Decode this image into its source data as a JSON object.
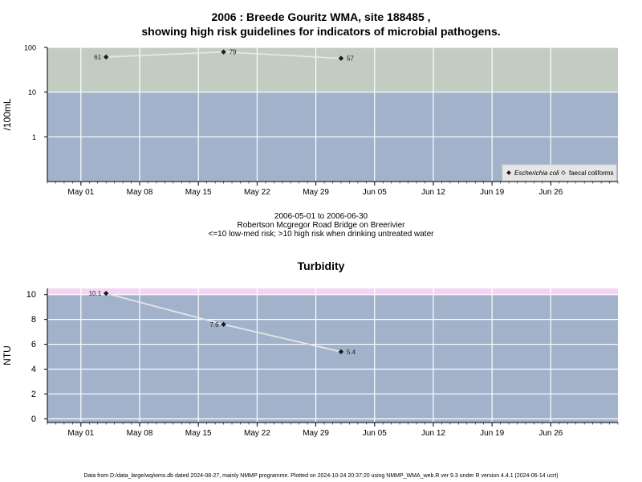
{
  "page": {
    "title_line1": "2006 : Breede Gouritz WMA, site 188485 ,",
    "title_line2": "showing high risk guidelines for indicators of microbial pathogens.",
    "caption_line1": "2006-05-01 to 2006-06-30",
    "caption_line2": "Robertson Mcgregor Road Bridge on Breerivier",
    "caption_line3": "<=10 low-med risk; >10 high risk when drinking untreated water",
    "footer": "Data from D:/data_large/wq/wms.db dated 2024-08-27, mainly NMMP programme. Plotted on 2024-10-24 20:37:20 using NMMP_WMA_web.R ver 9.3 under R version 4.4.1 (2024-06-14 ucrt)"
  },
  "chart_data": [
    {
      "type": "line",
      "title": "",
      "ylabel": "/100mL",
      "y_scale": "log",
      "ylim": [
        0.1,
        100
      ],
      "y_ticks": [
        {
          "value": 1,
          "label": "1"
        },
        {
          "value": 10,
          "label": "10"
        },
        {
          "value": 100,
          "label": "100"
        }
      ],
      "xlim": [
        "2006-04-27",
        "2006-07-04"
      ],
      "x_ticks": [
        {
          "date": "2006-05-01",
          "label": "May 01"
        },
        {
          "date": "2006-05-08",
          "label": "May 08"
        },
        {
          "date": "2006-05-15",
          "label": "May 15"
        },
        {
          "date": "2006-05-22",
          "label": "May 22"
        },
        {
          "date": "2006-05-29",
          "label": "May 29"
        },
        {
          "date": "2006-06-05",
          "label": "Jun 05"
        },
        {
          "date": "2006-06-12",
          "label": "Jun 12"
        },
        {
          "date": "2006-06-19",
          "label": "Jun 19"
        },
        {
          "date": "2006-06-26",
          "label": "Jun 26"
        }
      ],
      "bands": [
        {
          "from": 0.1,
          "to": 10,
          "color": "#a2b2cb"
        },
        {
          "from": 10,
          "to": 100,
          "color": "#c2ccc1"
        }
      ],
      "line_color": "#e6e6e6",
      "series": [
        {
          "name": "Escherichia coli",
          "marker": "filled-diamond",
          "points": [
            {
              "x": "2006-05-04",
              "y": 61,
              "label": "61"
            },
            {
              "x": "2006-05-18",
              "y": 79,
              "label": "79"
            },
            {
              "x": "2006-06-01",
              "y": 57,
              "label": "57"
            }
          ]
        }
      ],
      "legend": {
        "position": "bottom-right",
        "entries": [
          {
            "label": "Escherichia coli",
            "marker": "filled-diamond",
            "italic": true
          },
          {
            "label": "faecal coliforms",
            "marker": "open-diamond",
            "italic": false
          }
        ]
      }
    },
    {
      "type": "line",
      "title": "Turbidity",
      "ylabel": "NTU",
      "y_scale": "linear",
      "ylim": [
        -0.3,
        10.5
      ],
      "y_ticks": [
        {
          "value": 0,
          "label": "0"
        },
        {
          "value": 2,
          "label": "2"
        },
        {
          "value": 4,
          "label": "4"
        },
        {
          "value": 6,
          "label": "6"
        },
        {
          "value": 8,
          "label": "8"
        },
        {
          "value": 10,
          "label": "10"
        }
      ],
      "xlim": [
        "2006-04-27",
        "2006-07-04"
      ],
      "x_ticks": [
        {
          "date": "2006-05-01",
          "label": "May 01"
        },
        {
          "date": "2006-05-08",
          "label": "May 08"
        },
        {
          "date": "2006-05-15",
          "label": "May 15"
        },
        {
          "date": "2006-05-22",
          "label": "May 22"
        },
        {
          "date": "2006-05-29",
          "label": "May 29"
        },
        {
          "date": "2006-06-05",
          "label": "Jun 05"
        },
        {
          "date": "2006-06-12",
          "label": "Jun 12"
        },
        {
          "date": "2006-06-19",
          "label": "Jun 19"
        },
        {
          "date": "2006-06-26",
          "label": "Jun 26"
        }
      ],
      "bands": [
        {
          "from": -0.3,
          "to": 10,
          "color": "#a2b2cb"
        },
        {
          "from": 10,
          "to": 10.5,
          "color": "#f5d5f5"
        }
      ],
      "line_color": "#e6e6e6",
      "series": [
        {
          "name": "",
          "marker": "filled-diamond",
          "points": [
            {
              "x": "2006-05-04",
              "y": 10.1,
              "label": "10.1"
            },
            {
              "x": "2006-05-18",
              "y": 7.6,
              "label": "7.6"
            },
            {
              "x": "2006-06-01",
              "y": 5.4,
              "label": "5.4"
            }
          ]
        }
      ]
    }
  ]
}
